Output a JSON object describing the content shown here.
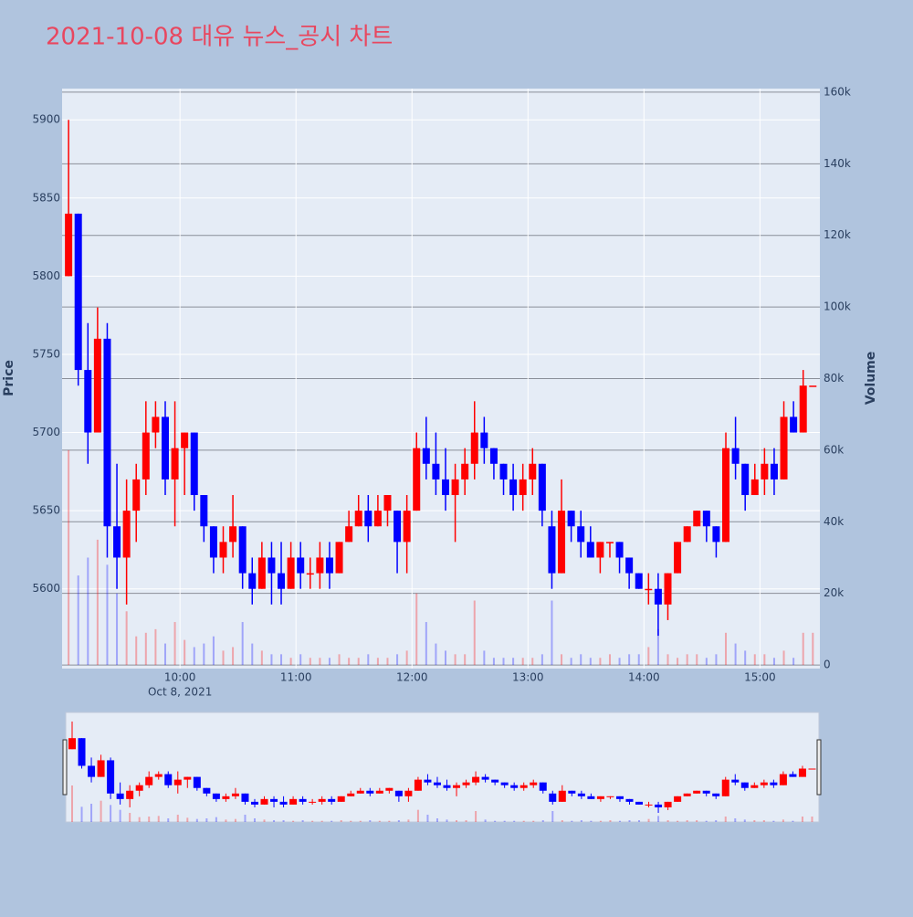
{
  "chart_data": {
    "type": "candlestick",
    "title": "2021-10-08 대유 뉴스_공시 차트",
    "y_title": "Price",
    "y2_title": "Volume",
    "x_date_label": "Oct 8, 2021",
    "increasing_color": "#ff0000",
    "decreasing_color": "#0000ff",
    "x": [
      "09:00",
      "09:05",
      "09:10",
      "09:15",
      "09:20",
      "09:25",
      "09:30",
      "09:35",
      "09:40",
      "09:45",
      "09:50",
      "09:55",
      "10:00",
      "10:05",
      "10:10",
      "10:15",
      "10:20",
      "10:25",
      "10:30",
      "10:35",
      "10:40",
      "10:45",
      "10:50",
      "10:55",
      "11:00",
      "11:05",
      "11:10",
      "11:15",
      "11:20",
      "11:25",
      "11:30",
      "11:35",
      "11:40",
      "11:45",
      "11:50",
      "11:55",
      "12:00",
      "12:05",
      "12:10",
      "12:15",
      "12:20",
      "12:25",
      "12:30",
      "12:35",
      "12:40",
      "12:45",
      "12:50",
      "12:55",
      "13:00",
      "13:05",
      "13:10",
      "13:15",
      "13:20",
      "13:25",
      "13:30",
      "13:35",
      "13:40",
      "13:45",
      "13:50",
      "13:55",
      "14:00",
      "14:05",
      "14:10",
      "14:15",
      "14:20",
      "14:25",
      "14:30",
      "14:35",
      "14:40",
      "14:45",
      "14:50",
      "14:55",
      "15:00",
      "15:05",
      "15:10",
      "15:15",
      "15:20",
      "15:25"
    ],
    "open": [
      5800,
      5840,
      5740,
      5700,
      5760,
      5640,
      5620,
      5650,
      5670,
      5700,
      5710,
      5670,
      5690,
      5700,
      5660,
      5640,
      5620,
      5630,
      5640,
      5610,
      5600,
      5620,
      5610,
      5600,
      5620,
      5610,
      5610,
      5620,
      5610,
      5630,
      5640,
      5650,
      5640,
      5650,
      5650,
      5630,
      5650,
      5690,
      5680,
      5670,
      5660,
      5670,
      5680,
      5700,
      5690,
      5680,
      5670,
      5660,
      5670,
      5680,
      5640,
      5610,
      5650,
      5640,
      5630,
      5620,
      5630,
      5630,
      5620,
      5610,
      5600,
      5600,
      5590,
      5610,
      5630,
      5640,
      5650,
      5640,
      5630,
      5690,
      5680,
      5660,
      5670,
      5680,
      5670,
      5710,
      5700,
      5730
    ],
    "high": [
      5900,
      5840,
      5770,
      5780,
      5770,
      5680,
      5670,
      5680,
      5720,
      5720,
      5720,
      5720,
      5700,
      5700,
      5660,
      5640,
      5640,
      5660,
      5640,
      5620,
      5630,
      5630,
      5630,
      5630,
      5630,
      5620,
      5630,
      5630,
      5630,
      5650,
      5660,
      5660,
      5660,
      5660,
      5650,
      5660,
      5700,
      5710,
      5700,
      5690,
      5680,
      5690,
      5720,
      5710,
      5690,
      5680,
      5680,
      5680,
      5690,
      5680,
      5650,
      5670,
      5650,
      5650,
      5640,
      5630,
      5630,
      5630,
      5620,
      5610,
      5610,
      5610,
      5610,
      5630,
      5640,
      5650,
      5650,
      5640,
      5700,
      5710,
      5680,
      5680,
      5690,
      5690,
      5720,
      5720,
      5740,
      5730
    ],
    "low": [
      5800,
      5730,
      5680,
      5700,
      5620,
      5600,
      5590,
      5630,
      5660,
      5690,
      5660,
      5640,
      5660,
      5650,
      5630,
      5610,
      5610,
      5620,
      5600,
      5590,
      5600,
      5590,
      5590,
      5600,
      5600,
      5600,
      5600,
      5600,
      5610,
      5630,
      5640,
      5630,
      5640,
      5640,
      5610,
      5610,
      5650,
      5670,
      5660,
      5650,
      5630,
      5660,
      5670,
      5680,
      5670,
      5660,
      5650,
      5650,
      5660,
      5640,
      5600,
      5610,
      5630,
      5620,
      5620,
      5610,
      5620,
      5610,
      5600,
      5600,
      5590,
      5570,
      5580,
      5610,
      5630,
      5640,
      5630,
      5620,
      5630,
      5670,
      5650,
      5660,
      5660,
      5660,
      5670,
      5700,
      5700,
      5730
    ],
    "close": [
      5840,
      5740,
      5700,
      5760,
      5640,
      5620,
      5650,
      5670,
      5700,
      5710,
      5670,
      5690,
      5700,
      5660,
      5640,
      5620,
      5630,
      5640,
      5610,
      5600,
      5620,
      5610,
      5600,
      5620,
      5610,
      5610,
      5620,
      5610,
      5630,
      5640,
      5650,
      5640,
      5650,
      5660,
      5630,
      5650,
      5690,
      5680,
      5670,
      5660,
      5670,
      5680,
      5700,
      5690,
      5680,
      5670,
      5660,
      5670,
      5680,
      5650,
      5610,
      5650,
      5640,
      5630,
      5620,
      5630,
      5630,
      5620,
      5610,
      5600,
      5600,
      5590,
      5610,
      5630,
      5640,
      5650,
      5640,
      5630,
      5690,
      5680,
      5660,
      5670,
      5680,
      5670,
      5710,
      5700,
      5730,
      5730
    ],
    "volume": [
      60000,
      25000,
      30000,
      35000,
      28000,
      20000,
      15000,
      8000,
      9000,
      10000,
      6000,
      12000,
      7000,
      5000,
      6000,
      8000,
      4000,
      5000,
      12000,
      6000,
      4000,
      3000,
      3000,
      2000,
      3000,
      2000,
      2000,
      2000,
      3000,
      2000,
      2000,
      3000,
      2000,
      2000,
      3000,
      4000,
      20000,
      12000,
      6000,
      4000,
      3000,
      3000,
      18000,
      4000,
      2000,
      2000,
      2000,
      2000,
      2000,
      3000,
      18000,
      3000,
      2000,
      3000,
      2000,
      2000,
      3000,
      2000,
      3000,
      3000,
      5000,
      10000,
      3000,
      2000,
      3000,
      3000,
      2000,
      3000,
      9000,
      6000,
      4000,
      3000,
      3000,
      2000,
      4000,
      2000,
      9000,
      9000
    ],
    "xlim": [
      "08:59",
      "15:31"
    ],
    "xticks": [
      "10:00",
      "11:00",
      "12:00",
      "13:00",
      "14:00",
      "15:00"
    ],
    "ylim": [
      5549,
      5920
    ],
    "yticks": [
      5600,
      5650,
      5700,
      5750,
      5800,
      5850,
      5900
    ],
    "y2lim": [
      -1000,
      161000
    ],
    "y2ticks": [
      0,
      {
        "value": 20000,
        "label": "20k"
      },
      {
        "value": 40000,
        "label": "40k"
      },
      {
        "value": 60000,
        "label": "60k"
      },
      {
        "value": 80000,
        "label": "80k"
      },
      {
        "value": 100000,
        "label": "100k"
      },
      {
        "value": 120000,
        "label": "120k"
      },
      {
        "value": 140000,
        "label": "140k"
      },
      {
        "value": 160000,
        "label": "160k"
      }
    ],
    "grid": true,
    "rangeslider": true
  }
}
